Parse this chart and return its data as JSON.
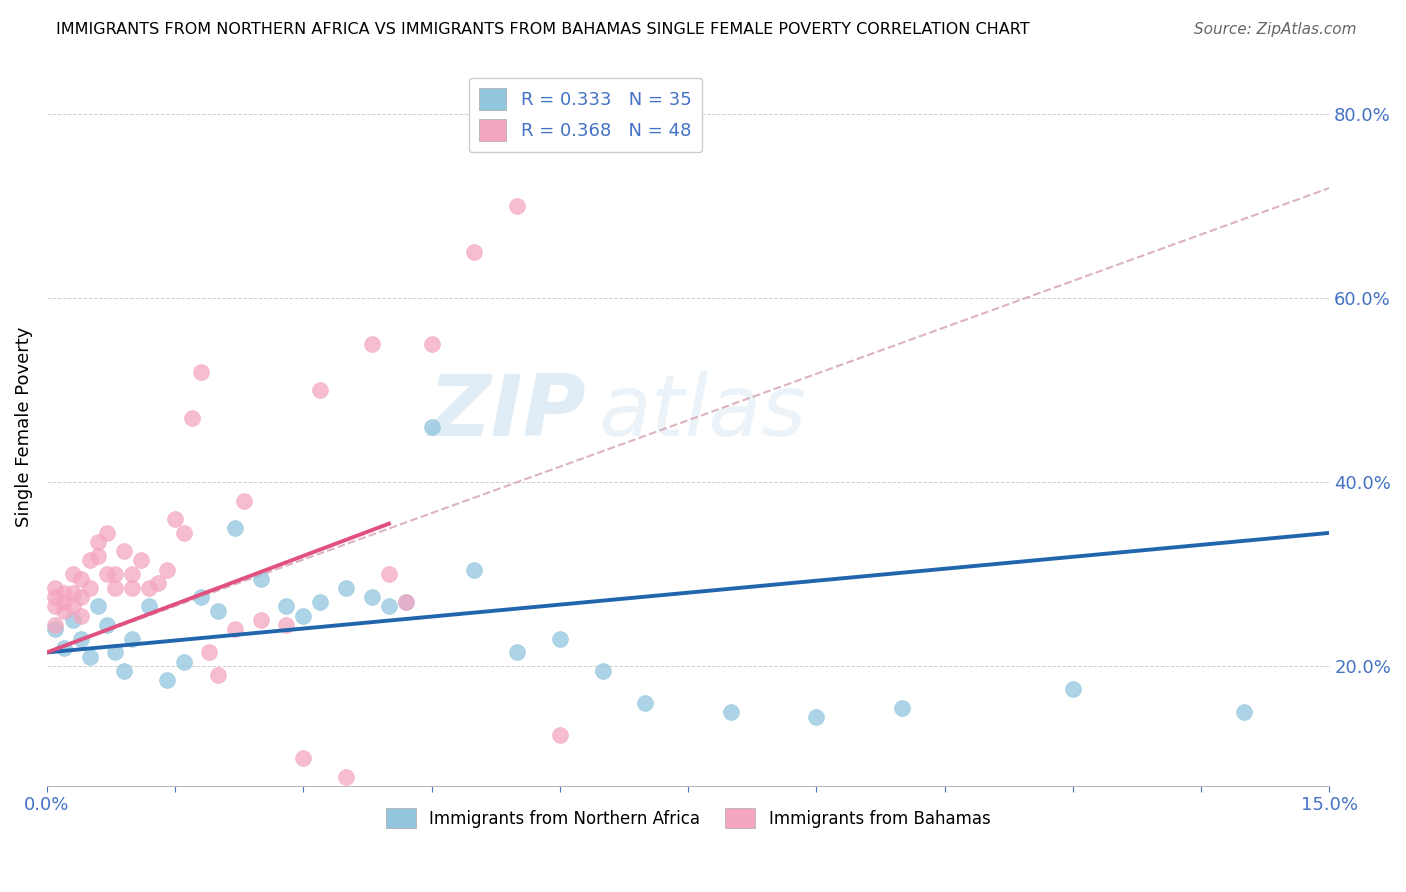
{
  "title": "IMMIGRANTS FROM NORTHERN AFRICA VS IMMIGRANTS FROM BAHAMAS SINGLE FEMALE POVERTY CORRELATION CHART",
  "source": "Source: ZipAtlas.com",
  "ylabel": "Single Female Poverty",
  "legend_label1": "Immigrants from Northern Africa",
  "legend_label2": "Immigrants from Bahamas",
  "R1": 0.333,
  "N1": 35,
  "R2": 0.368,
  "N2": 48,
  "color_blue": "#92c5de",
  "color_pink": "#f4a6c0",
  "color_blue_dark": "#2166ac",
  "color_pink_dark": "#e05080",
  "color_dash": "#d4a0b0",
  "watermark_zip": "ZIP",
  "watermark_atlas": "atlas",
  "blue_scatter_x": [
    0.001,
    0.002,
    0.003,
    0.004,
    0.005,
    0.006,
    0.007,
    0.008,
    0.009,
    0.01,
    0.012,
    0.014,
    0.016,
    0.018,
    0.02,
    0.022,
    0.025,
    0.028,
    0.03,
    0.032,
    0.035,
    0.038,
    0.04,
    0.042,
    0.045,
    0.05,
    0.055,
    0.06,
    0.065,
    0.07,
    0.08,
    0.09,
    0.1,
    0.12,
    0.14
  ],
  "blue_scatter_y": [
    0.24,
    0.22,
    0.25,
    0.23,
    0.21,
    0.265,
    0.245,
    0.215,
    0.195,
    0.23,
    0.265,
    0.185,
    0.205,
    0.275,
    0.26,
    0.35,
    0.295,
    0.265,
    0.255,
    0.27,
    0.285,
    0.275,
    0.265,
    0.27,
    0.46,
    0.305,
    0.215,
    0.23,
    0.195,
    0.16,
    0.15,
    0.145,
    0.155,
    0.175,
    0.15
  ],
  "pink_scatter_x": [
    0.001,
    0.001,
    0.001,
    0.001,
    0.002,
    0.002,
    0.002,
    0.003,
    0.003,
    0.003,
    0.004,
    0.004,
    0.004,
    0.005,
    0.005,
    0.006,
    0.006,
    0.007,
    0.007,
    0.008,
    0.008,
    0.009,
    0.01,
    0.01,
    0.011,
    0.012,
    0.013,
    0.014,
    0.015,
    0.016,
    0.017,
    0.018,
    0.019,
    0.02,
    0.022,
    0.023,
    0.025,
    0.028,
    0.03,
    0.032,
    0.035,
    0.038,
    0.04,
    0.042,
    0.045,
    0.05,
    0.055,
    0.06
  ],
  "pink_scatter_y": [
    0.245,
    0.265,
    0.275,
    0.285,
    0.26,
    0.27,
    0.28,
    0.265,
    0.28,
    0.3,
    0.255,
    0.275,
    0.295,
    0.285,
    0.315,
    0.32,
    0.335,
    0.345,
    0.3,
    0.285,
    0.3,
    0.325,
    0.285,
    0.3,
    0.315,
    0.285,
    0.29,
    0.305,
    0.36,
    0.345,
    0.47,
    0.52,
    0.215,
    0.19,
    0.24,
    0.38,
    0.25,
    0.245,
    0.1,
    0.5,
    0.08,
    0.55,
    0.3,
    0.27,
    0.55,
    0.65,
    0.7,
    0.125
  ],
  "xlim": [
    0.0,
    0.15
  ],
  "ylim": [
    0.07,
    0.85
  ],
  "yticks": [
    0.2,
    0.4,
    0.6,
    0.8
  ],
  "ytick_labels": [
    "20.0%",
    "40.0%",
    "60.0%",
    "80.0%"
  ],
  "blue_line_x0": 0.0,
  "blue_line_x1": 0.15,
  "blue_line_y0": 0.215,
  "blue_line_y1": 0.345,
  "pink_line_x0": 0.0,
  "pink_line_x1": 0.04,
  "pink_line_y0": 0.215,
  "pink_line_y1": 0.355,
  "dash_line_x0": 0.0,
  "dash_line_x1": 0.15,
  "dash_line_y0": 0.215,
  "dash_line_y1": 0.72
}
